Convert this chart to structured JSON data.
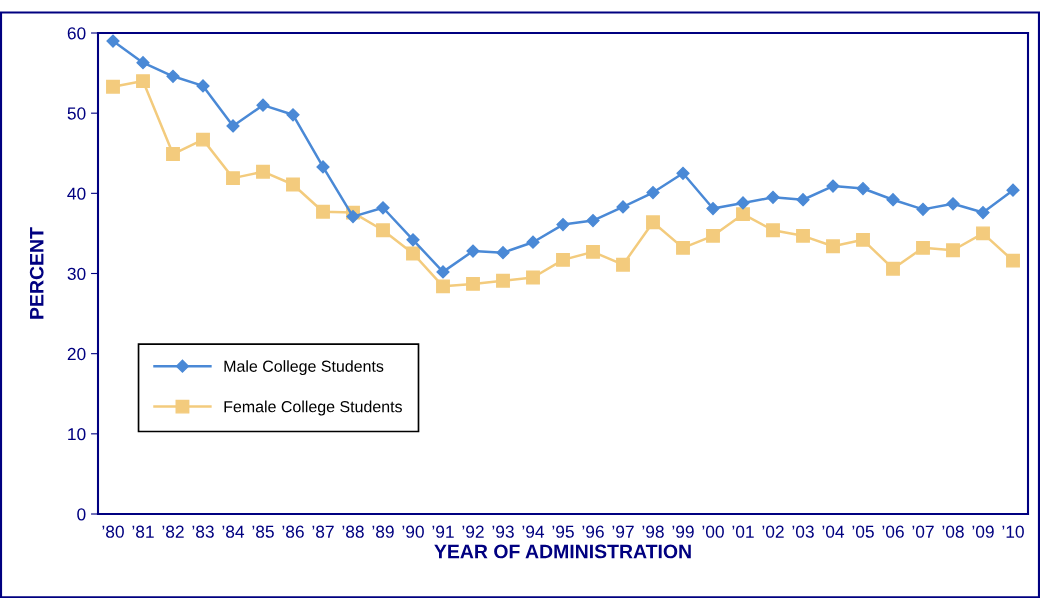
{
  "chart_data": {
    "type": "line",
    "xlabel": "YEAR OF ADMINISTRATION",
    "ylabel": "PERCENT",
    "categories": [
      "’80",
      "’81",
      "’82",
      "’83",
      "’84",
      "’85",
      "’86",
      "’87",
      "’88",
      "’89",
      "’90",
      "’91",
      "’92",
      "’93",
      "’94",
      "’95",
      "’96",
      "’97",
      "’98",
      "’99",
      "’00",
      "’01",
      "’02",
      "’03",
      "’04",
      "’05",
      "’06",
      "’07",
      "’08",
      "’09",
      "’10"
    ],
    "series": [
      {
        "name": "Male College Students",
        "color": "#4a89d6",
        "marker": "diamond",
        "values": [
          59,
          56.3,
          54.6,
          53.4,
          48.4,
          51,
          49.8,
          43.3,
          37.1,
          38.2,
          34.2,
          30.2,
          32.8,
          32.6,
          33.9,
          36.1,
          36.6,
          38.3,
          40.1,
          42.5,
          38.1,
          38.8,
          39.5,
          39.2,
          40.9,
          40.6,
          39.2,
          38.0,
          38.7,
          37.6,
          40.4
        ]
      },
      {
        "name": "Female College Students",
        "color": "#f3cb7d",
        "marker": "square",
        "values": [
          53.3,
          54,
          44.9,
          46.7,
          41.9,
          42.7,
          41.1,
          37.7,
          37.6,
          35.4,
          32.5,
          28.4,
          28.7,
          29.1,
          29.5,
          31.7,
          32.7,
          31.1,
          36.4,
          33.2,
          34.7,
          37.4,
          35.4,
          34.7,
          33.4,
          34.2,
          30.6,
          33.2,
          32.9,
          35.0,
          31.6
        ]
      }
    ],
    "ylim": [
      0,
      60
    ],
    "yticks": [
      0,
      10,
      20,
      30,
      40,
      50,
      60
    ],
    "grid": false,
    "legend": "bottom left"
  }
}
